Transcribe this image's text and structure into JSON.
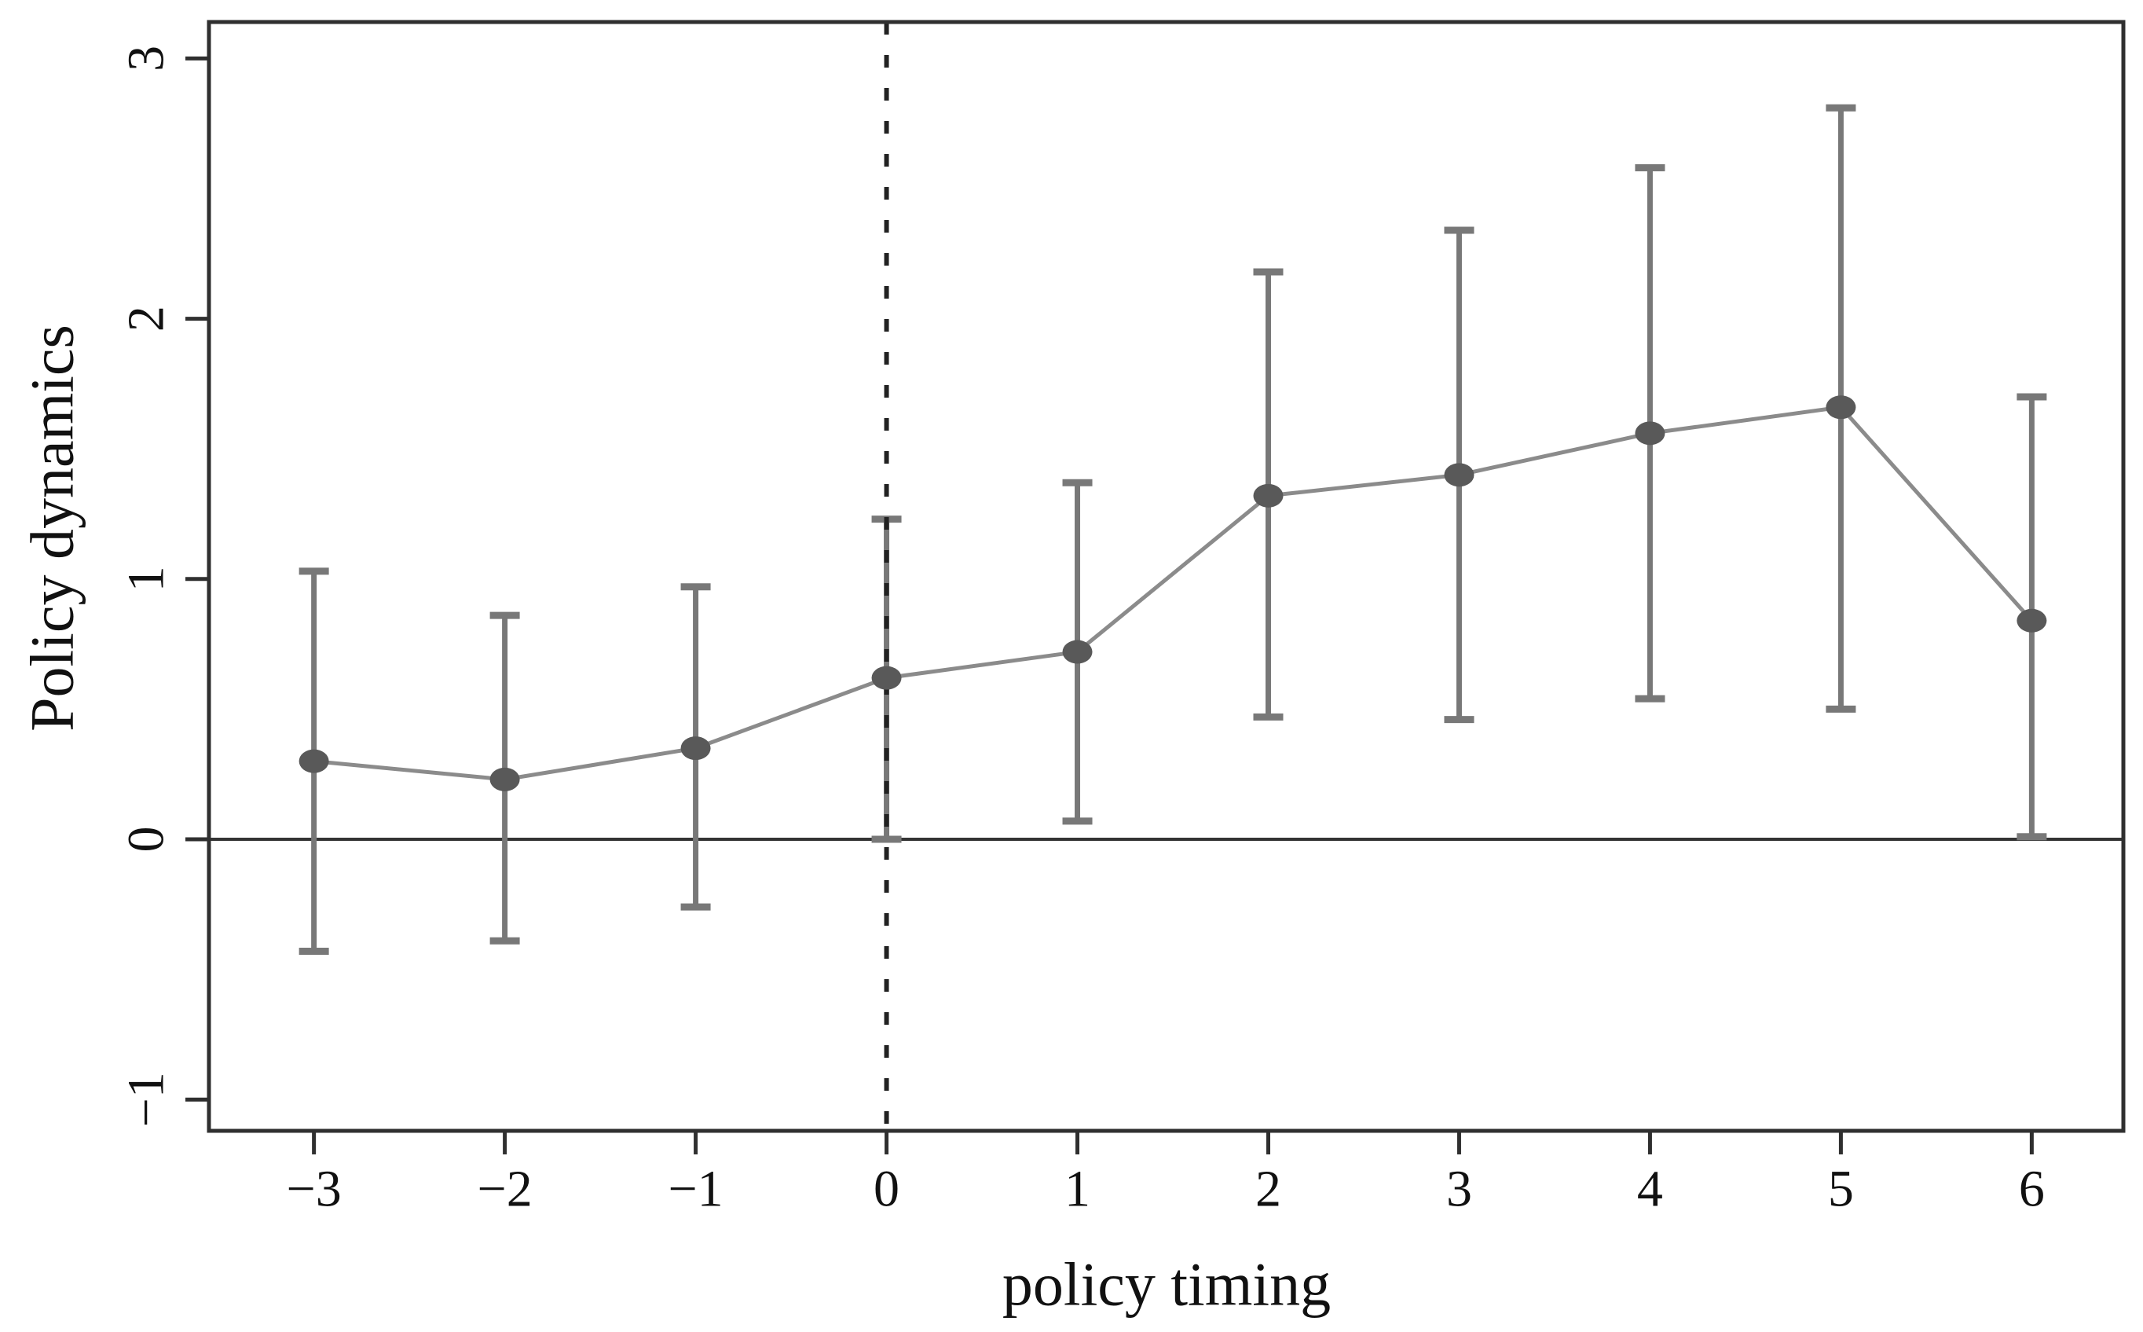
{
  "chart_data": {
    "type": "line",
    "subtype": "point-estimates-with-error-bars",
    "title": "",
    "xlabel": "policy timing",
    "ylabel": "Policy dynamics",
    "x": [
      -3,
      -2,
      -1,
      0,
      1,
      2,
      3,
      4,
      5,
      6
    ],
    "series": [
      {
        "name": "point estimate",
        "values": [
          0.3,
          0.23,
          0.35,
          0.62,
          0.72,
          1.32,
          1.4,
          1.56,
          1.66,
          0.84
        ]
      }
    ],
    "error_bars": {
      "low": [
        -0.43,
        -0.39,
        -0.26,
        0.0,
        0.07,
        0.47,
        0.46,
        0.54,
        0.5,
        0.01
      ],
      "high": [
        1.03,
        0.86,
        0.97,
        1.23,
        1.37,
        2.18,
        2.34,
        2.58,
        2.81,
        1.7
      ]
    },
    "x_ticks": [
      -3,
      -2,
      -1,
      0,
      1,
      2,
      3,
      4,
      5,
      6
    ],
    "x_tick_labels": [
      "−3",
      "−2",
      "−1",
      "0",
      "1",
      "2",
      "3",
      "4",
      "5",
      "6"
    ],
    "y_ticks": [
      -1,
      0,
      1,
      2,
      3
    ],
    "y_tick_labels": [
      "−1",
      "0",
      "1",
      "2",
      "3"
    ],
    "xlim": [
      -3.55,
      6.48
    ],
    "ylim": [
      -1.12,
      3.14
    ],
    "reference_lines": {
      "horizontal_solid_y": 0,
      "vertical_dashed_x": 0
    },
    "grid": false,
    "legend": null,
    "colors": {
      "background": "#ffffff",
      "axis": "#2f2f2f",
      "tick_text": "#111111",
      "error_bar": "#787878",
      "connecting_line": "#8b8b8b",
      "marker": "#595959",
      "zero_line": "#333333",
      "dashed_line": "#222222"
    }
  }
}
